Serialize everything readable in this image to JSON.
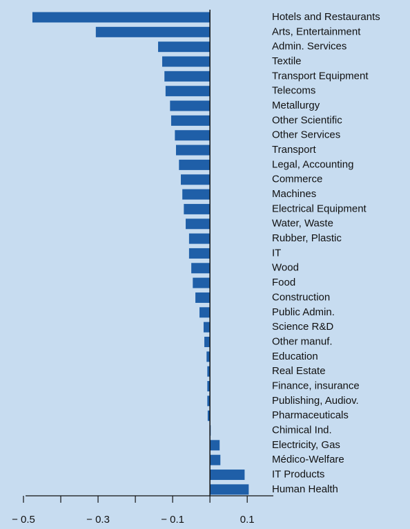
{
  "chart_data": {
    "type": "hbar",
    "categories": [
      "Hotels and Restaurants",
      "Arts, Entertainment",
      "Admin. Services",
      "Textile",
      "Transport Equipment",
      "Telecoms",
      "Metallurgy",
      "Other Scientific",
      "Other Services",
      "Transport",
      "Legal, Accounting",
      "Commerce",
      "Machines",
      "Electrical Equipment",
      "Water, Waste",
      "Rubber, Plastic",
      "IT",
      "Wood",
      "Food",
      "Construction",
      "Public Admin.",
      "Science R&D",
      "Other manuf.",
      "Education",
      "Real Estate",
      "Finance, insurance",
      "Publishing, Audiov.",
      "Pharmaceuticals",
      "Chimical Ind.",
      "Electricity, Gas",
      "Médico-Welfare",
      "IT Products",
      "Human Health"
    ],
    "values": [
      -0.476,
      -0.306,
      -0.139,
      -0.128,
      -0.122,
      -0.119,
      -0.107,
      -0.104,
      -0.094,
      -0.091,
      -0.083,
      -0.078,
      -0.074,
      -0.07,
      -0.065,
      -0.056,
      -0.056,
      -0.05,
      -0.046,
      -0.039,
      -0.028,
      -0.017,
      -0.015,
      -0.009,
      -0.007,
      -0.007,
      -0.007,
      -0.006,
      0.002,
      0.026,
      0.028,
      0.093,
      0.104
    ],
    "color": "#1f5fa8",
    "xlim": [
      -0.5,
      0.17
    ],
    "xticks": [
      {
        "value": -0.5,
        "label": "− 0.5"
      },
      {
        "value": -0.3,
        "label": "− 0.3"
      },
      {
        "value": -0.1,
        "label": "− 0.1"
      },
      0.1
    ],
    "xminorticks": [
      -0.4,
      -0.2,
      0
    ]
  }
}
